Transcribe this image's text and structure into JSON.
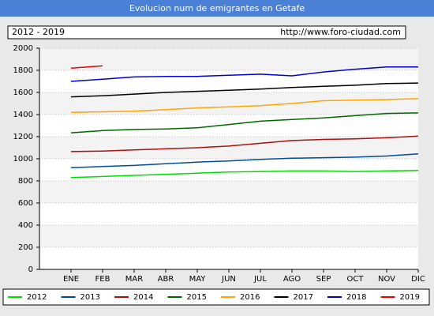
{
  "chart_data": {
    "type": "line",
    "title": "Evolucion num de emigrantes en Getafe",
    "period": "2012 - 2019",
    "source": "http://www.foro-ciudad.com",
    "categories": [
      "ENE",
      "FEB",
      "MAR",
      "ABR",
      "MAY",
      "JUN",
      "JUL",
      "AGO",
      "SEP",
      "OCT",
      "NOV",
      "DIC"
    ],
    "series": [
      {
        "name": "2012",
        "color": "#00dd00",
        "values": [
          830,
          840,
          850,
          860,
          870,
          880,
          885,
          890,
          890,
          885,
          890,
          895
        ]
      },
      {
        "name": "2013",
        "color": "#004c99",
        "values": [
          920,
          930,
          940,
          955,
          970,
          980,
          995,
          1005,
          1010,
          1015,
          1025,
          1045
        ]
      },
      {
        "name": "2014",
        "color": "#aa1111",
        "values": [
          1065,
          1070,
          1080,
          1090,
          1100,
          1115,
          1140,
          1165,
          1175,
          1180,
          1190,
          1205
        ]
      },
      {
        "name": "2015",
        "color": "#006600",
        "values": [
          1235,
          1255,
          1265,
          1270,
          1280,
          1310,
          1340,
          1355,
          1370,
          1390,
          1410,
          1415
        ]
      },
      {
        "name": "2016",
        "color": "#ffa500",
        "values": [
          1420,
          1425,
          1430,
          1445,
          1460,
          1470,
          1480,
          1500,
          1525,
          1530,
          1535,
          1545
        ]
      },
      {
        "name": "2017",
        "color": "#000000",
        "values": [
          1560,
          1570,
          1585,
          1600,
          1610,
          1620,
          1630,
          1645,
          1655,
          1665,
          1680,
          1685
        ]
      },
      {
        "name": "2018",
        "color": "#0000cc",
        "values": [
          1700,
          1720,
          1740,
          1745,
          1745,
          1755,
          1765,
          1750,
          1785,
          1810,
          1830,
          1830
        ]
      },
      {
        "name": "2019",
        "color": "#ee0000",
        "values": [
          1820,
          1840,
          null,
          null,
          null,
          null,
          null,
          null,
          null,
          null,
          null,
          null
        ]
      }
    ],
    "ylim": [
      0,
      2000
    ],
    "yticks": [
      0,
      200,
      400,
      600,
      800,
      1000,
      1200,
      1400,
      1600,
      1800,
      2000
    ],
    "grid": true
  }
}
